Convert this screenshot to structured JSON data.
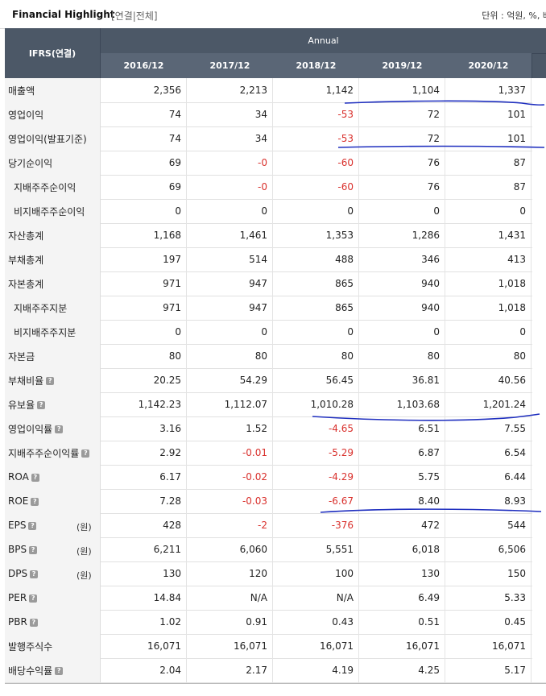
{
  "title": "Financial Highlight",
  "subtitle": "[연결|전체]",
  "unit": "단위 : 억원, %, 배",
  "header": {
    "label": "IFRS(연결)",
    "annual": "Annual",
    "years": [
      "2016/12",
      "2017/12",
      "2018/12",
      "2019/12",
      "2020/12"
    ]
  },
  "rows": [
    {
      "label": "매출액",
      "values": [
        "2,356",
        "2,213",
        "1,142",
        "1,104",
        "1,337"
      ]
    },
    {
      "label": "영업이익",
      "values": [
        "74",
        "34",
        "-53",
        "72",
        "101"
      ]
    },
    {
      "label": "영업이익(발표기준)",
      "values": [
        "74",
        "34",
        "-53",
        "72",
        "101"
      ]
    },
    {
      "label": "당기순이익",
      "values": [
        "69",
        "-0",
        "-60",
        "76",
        "87"
      ]
    },
    {
      "label": "지배주주순이익",
      "values": [
        "69",
        "-0",
        "-60",
        "76",
        "87"
      ]
    },
    {
      "label": "비지배주주순이익",
      "values": [
        "0",
        "0",
        "0",
        "0",
        "0"
      ]
    },
    {
      "label": "자산총계",
      "values": [
        "1,168",
        "1,461",
        "1,353",
        "1,286",
        "1,431"
      ]
    },
    {
      "label": "부채총계",
      "values": [
        "197",
        "514",
        "488",
        "346",
        "413"
      ]
    },
    {
      "label": "자본총계",
      "values": [
        "971",
        "947",
        "865",
        "940",
        "1,018"
      ]
    },
    {
      "label": "지배주주지분",
      "values": [
        "971",
        "947",
        "865",
        "940",
        "1,018"
      ]
    },
    {
      "label": "비지배주주지분",
      "values": [
        "0",
        "0",
        "0",
        "0",
        "0"
      ]
    },
    {
      "label": "자본금",
      "values": [
        "80",
        "80",
        "80",
        "80",
        "80"
      ]
    },
    {
      "label": "부채비율",
      "values": [
        "20.25",
        "54.29",
        "56.45",
        "36.81",
        "40.56"
      ]
    },
    {
      "label": "유보율",
      "values": [
        "1,142.23",
        "1,112.07",
        "1,010.28",
        "1,103.68",
        "1,201.24"
      ]
    },
    {
      "label": "영업이익률",
      "values": [
        "3.16",
        "1.52",
        "-4.65",
        "6.51",
        "7.55"
      ]
    },
    {
      "label": "지배주주순이익률",
      "values": [
        "2.92",
        "-0.01",
        "-5.29",
        "6.87",
        "6.54"
      ]
    },
    {
      "label": "ROA",
      "values": [
        "6.17",
        "-0.02",
        "-4.29",
        "5.75",
        "6.44"
      ]
    },
    {
      "label": "ROE",
      "values": [
        "7.28",
        "-0.03",
        "-6.67",
        "8.40",
        "8.93"
      ]
    },
    {
      "label": "EPS",
      "unit": "(원)",
      "values": [
        "428",
        "-2",
        "-376",
        "472",
        "544"
      ]
    },
    {
      "label": "BPS",
      "unit": "(원)",
      "values": [
        "6,211",
        "6,060",
        "5,551",
        "6,018",
        "6,506"
      ]
    },
    {
      "label": "DPS",
      "unit": "(원)",
      "values": [
        "130",
        "120",
        "100",
        "130",
        "150"
      ]
    },
    {
      "label": "PER",
      "values": [
        "14.84",
        "N/A",
        "N/A",
        "6.49",
        "5.33"
      ]
    },
    {
      "label": "PBR",
      "values": [
        "1.02",
        "0.91",
        "0.43",
        "0.51",
        "0.45"
      ]
    },
    {
      "label": "발행주식수",
      "values": [
        "16,071",
        "16,071",
        "16,071",
        "16,071",
        "16,071"
      ]
    },
    {
      "label": "배당수익률",
      "values": [
        "2.04",
        "2.17",
        "4.19",
        "4.25",
        "5.17"
      ]
    }
  ],
  "icons": {
    "help": "help-icon"
  },
  "colors": {
    "header_bg": "#4c5867",
    "negative": "#d9302c",
    "annotation": "#1f2fbf"
  }
}
